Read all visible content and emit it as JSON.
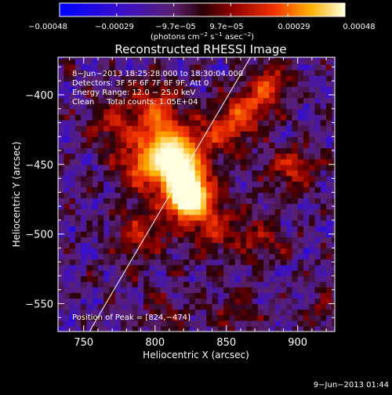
{
  "colors": {
    "background": "#000000",
    "text": "#ffffff",
    "frame": "#ffffff"
  },
  "colorbar": {
    "tick_labels": [
      "−0.00048",
      "−0.00029",
      "−9.7e−05",
      "9.7e−05",
      "0.00029",
      "0.00048"
    ],
    "unit_prefix": "(photons cm",
    "unit_sup1": "−2",
    "unit_mid": " s",
    "unit_sup2": "−1",
    "unit_mid2": " asec",
    "unit_sup3": "−2",
    "unit_suffix": ")"
  },
  "annotations": {
    "time_range": "8−Jun−2013 18:25:28.000 to 18:30:04.000",
    "detectors": "Detectors: 3F 5F 6F 7F 8F 9F, Att 0",
    "energy": "Energy Range: 12.0 − 25.0 keV",
    "clean": "Clean     Total counts: 1.05E+04",
    "peak": "Position of Peak = [824,−474]"
  },
  "footer": {
    "timestamp": "9−Jun−2013 01:44"
  },
  "chart_data": {
    "type": "heatmap",
    "title": "Reconstructed RHESSI Image",
    "xlabel": "Heliocentric X (arcsec)",
    "ylabel": "Heliocentric Y (arcsec)",
    "xlim": [
      732,
      926
    ],
    "ylim": [
      -570,
      -373
    ],
    "xticks": [
      750,
      800,
      850,
      900
    ],
    "yticks": [
      -400,
      -450,
      -500,
      -550
    ],
    "xtick_labels": [
      "750",
      "800",
      "850",
      "900"
    ],
    "ytick_labels": [
      "−400",
      "−450",
      "−500",
      "−550"
    ],
    "colorbar_range": [
      -0.00048,
      0.00048
    ],
    "peak": {
      "x": 824,
      "y": -474
    },
    "limb_line": [
      [
        754,
        -570
      ],
      [
        867,
        -373
      ]
    ],
    "sources": [
      {
        "x": 823,
        "y": -474,
        "amplitude": 1.0,
        "sigma": 11
      },
      {
        "x": 819,
        "y": -452,
        "amplitude": 0.75,
        "sigma": 14
      },
      {
        "x": 808,
        "y": -432,
        "amplitude": 0.55,
        "sigma": 14
      },
      {
        "x": 790,
        "y": -452,
        "amplitude": 0.5,
        "sigma": 14
      },
      {
        "x": 800,
        "y": -405,
        "amplitude": 0.45,
        "sigma": 12
      },
      {
        "x": 848,
        "y": -425,
        "amplitude": 0.48,
        "sigma": 13
      },
      {
        "x": 866,
        "y": -410,
        "amplitude": 0.45,
        "sigma": 11
      },
      {
        "x": 881,
        "y": -392,
        "amplitude": 0.5,
        "sigma": 11
      },
      {
        "x": 896,
        "y": -452,
        "amplitude": 0.5,
        "sigma": 12
      },
      {
        "x": 842,
        "y": -495,
        "amplitude": 0.45,
        "sigma": 14
      },
      {
        "x": 790,
        "y": -500,
        "amplitude": 0.45,
        "sigma": 14
      },
      {
        "x": 770,
        "y": -418,
        "amplitude": 0.4,
        "sigma": 13
      },
      {
        "x": 875,
        "y": -505,
        "amplitude": 0.32,
        "sigma": 12
      },
      {
        "x": 855,
        "y": -555,
        "amplitude": 0.28,
        "sigma": 12
      },
      {
        "x": 805,
        "y": -555,
        "amplitude": 0.26,
        "sigma": 12
      },
      {
        "x": 915,
        "y": -555,
        "amplitude": 0.25,
        "sigma": 10
      }
    ]
  }
}
